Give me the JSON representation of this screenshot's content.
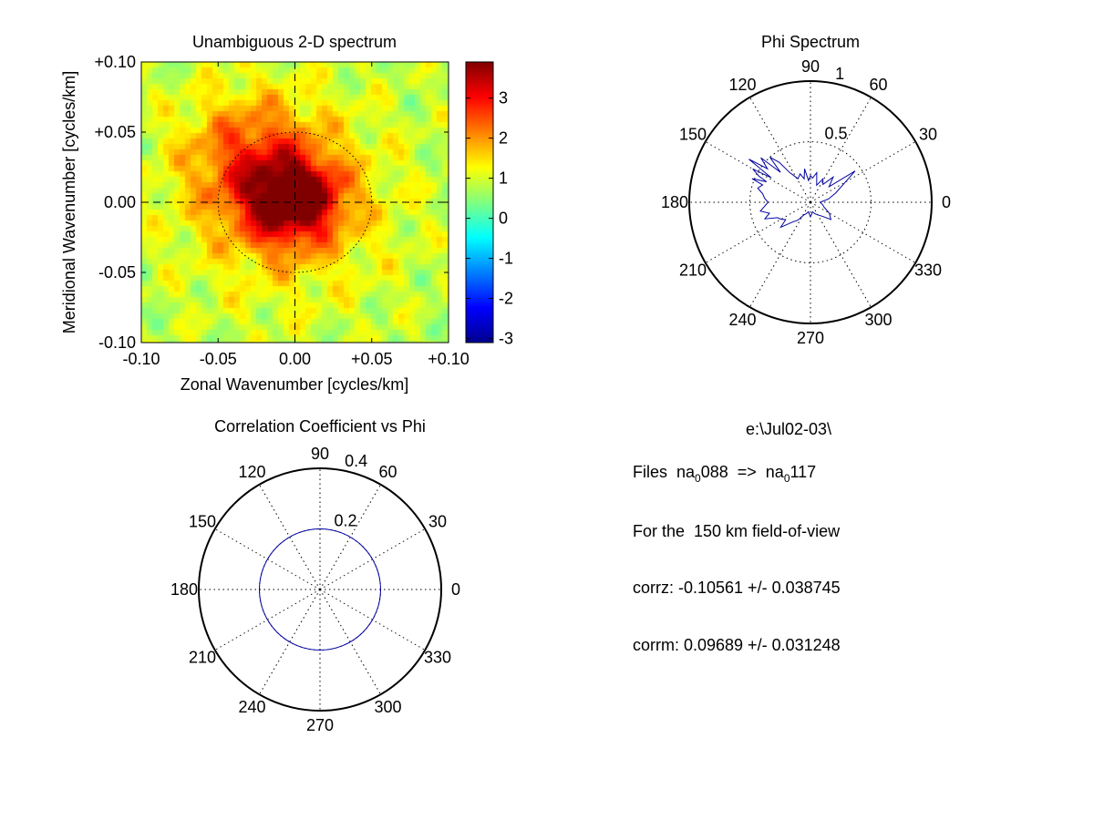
{
  "chart_data": [
    {
      "type": "heatmap",
      "title": "Unambiguous 2-D spectrum",
      "xlabel": "Zonal Wavenumber [cycles/km]",
      "ylabel": "Meridional Wavenumber [cycles/km]",
      "xlim": [
        -0.1,
        0.1
      ],
      "ylim": [
        -0.1,
        0.1
      ],
      "xticks": [
        "-0.10",
        "-0.05",
        "0.00",
        "+0.05",
        "+0.10"
      ],
      "yticks": [
        "+0.10",
        "+0.05",
        "0.00",
        "-0.05",
        "-0.10"
      ],
      "colorbar": {
        "min": -3.1,
        "max": 3.9,
        "ticks": [
          "3",
          "2",
          "1",
          "0",
          "-1",
          "-2",
          "-3"
        ],
        "colormap": "jet"
      },
      "peak": {
        "x": -0.005,
        "y": 0.0,
        "value": 3.8
      },
      "secondary_lobe": {
        "x": 0.01,
        "y": 0.005,
        "value": 3.3
      },
      "background_value": 0.8,
      "circle_radius": 0.05,
      "crosshair": {
        "x": 0.0,
        "y": 0.0
      }
    },
    {
      "type": "polar",
      "title": "Phi Spectrum",
      "rmax": 1,
      "rings": [
        0.5,
        1
      ],
      "ring_labels": [
        "0.5",
        "1"
      ],
      "angle_labels": [
        "90",
        "60",
        "30",
        "0",
        "330",
        "300",
        "270",
        "240",
        "210",
        "180",
        "150",
        "120"
      ],
      "series": [
        {
          "color": "#0000a0",
          "theta_deg": [
            0,
            10,
            20,
            28,
            35,
            40,
            48,
            55,
            62,
            70,
            78,
            85,
            90,
            95,
            100,
            105,
            110,
            118,
            125,
            128,
            132,
            135,
            138,
            142,
            145,
            148,
            150,
            153,
            155,
            158,
            160,
            165,
            170,
            175,
            180,
            185,
            190,
            195,
            200,
            205,
            210,
            215,
            220,
            228,
            235,
            242,
            250,
            258,
            265,
            270,
            275,
            282,
            290,
            300,
            310,
            320,
            330,
            340,
            350
          ],
          "r": [
            0.08,
            0.15,
            0.22,
            0.3,
            0.45,
            0.2,
            0.28,
            0.18,
            0.22,
            0.15,
            0.25,
            0.2,
            0.22,
            0.18,
            0.28,
            0.2,
            0.25,
            0.22,
            0.3,
            0.42,
            0.5,
            0.35,
            0.55,
            0.45,
            0.62,
            0.38,
            0.55,
            0.48,
            0.4,
            0.52,
            0.42,
            0.45,
            0.4,
            0.38,
            0.35,
            0.38,
            0.42,
            0.35,
            0.4,
            0.3,
            0.28,
            0.25,
            0.32,
            0.22,
            0.18,
            0.12,
            0.1,
            0.08,
            0.1,
            0.12,
            0.1,
            0.08,
            0.1,
            0.12,
            0.15,
            0.22,
            0.18,
            0.12,
            0.1
          ]
        }
      ]
    },
    {
      "type": "polar",
      "title": "Correlation Coefficient vs Phi",
      "rmax": 0.4,
      "rings": [
        0.2,
        0.4
      ],
      "ring_labels": [
        "0.2",
        "0.4"
      ],
      "angle_labels": [
        "90",
        "60",
        "30",
        "0",
        "330",
        "300",
        "270",
        "240",
        "210",
        "180",
        "150",
        "120"
      ],
      "series": [
        {
          "color": "#0000a0",
          "constant_r": 0.2
        }
      ]
    }
  ],
  "info": {
    "path": "e:\\Jul02-03\\",
    "files_prefix": "Files  na",
    "files_sub1": "0",
    "files_mid": "088  =>  na",
    "files_sub2": "0",
    "files_end": "117",
    "fov": "For the  150 km field-of-view",
    "corrz": "corrz: -0.10561 +/- 0.038745",
    "corrm": "corrm: 0.09689 +/- 0.031248"
  }
}
